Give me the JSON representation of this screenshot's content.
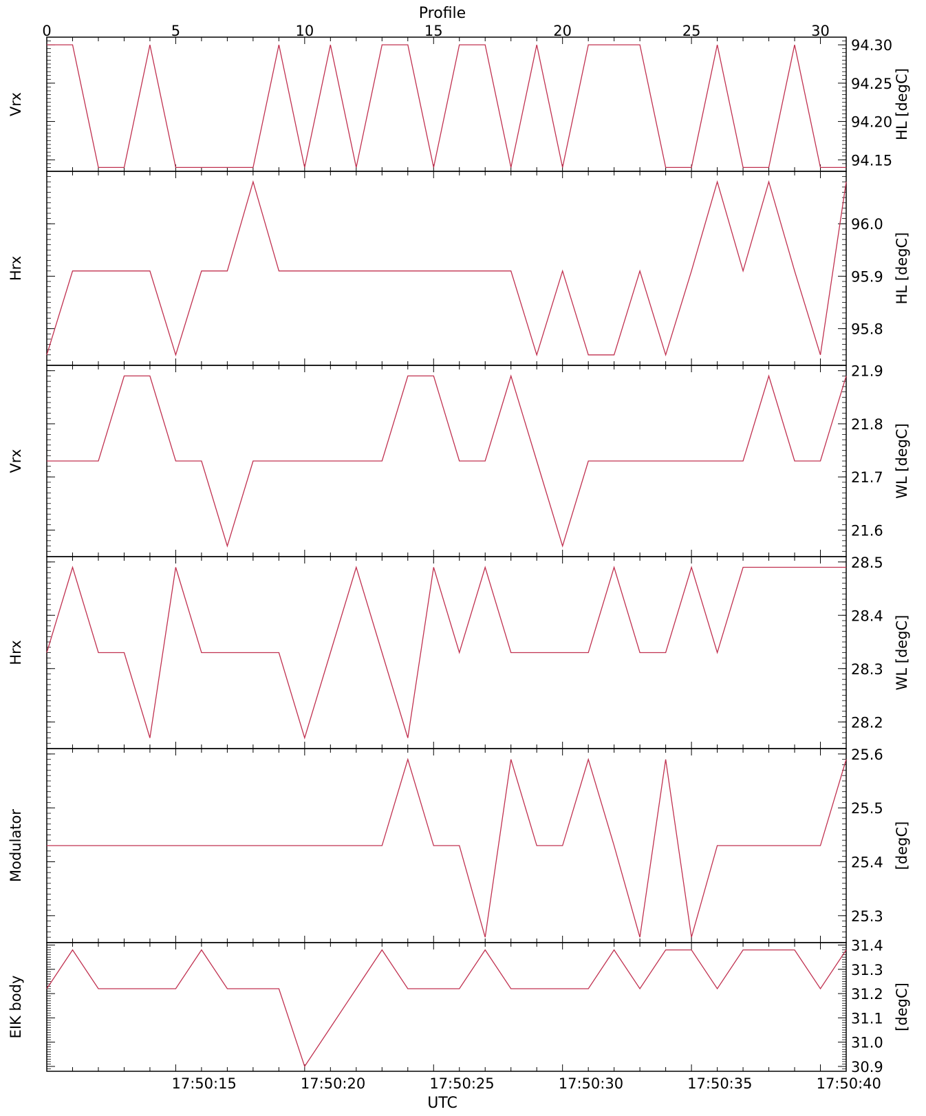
{
  "figure": {
    "top_axis_label": "Profile",
    "bottom_axis_label": "UTC",
    "top_ticks": [
      "0",
      "5",
      "10",
      "15",
      "20",
      "25",
      "30"
    ],
    "bottom_ticks": [
      "17:50:15",
      "17:50:20",
      "17:50:25",
      "17:50:30",
      "17:50:35",
      "17:50:40"
    ],
    "line_color": "#c0304f"
  },
  "chart_data": [
    {
      "type": "line",
      "left_label": "Vrx",
      "ylabel": "HL [degC]",
      "x": [
        0,
        1,
        2,
        3,
        4,
        5,
        6,
        7,
        8,
        9,
        10,
        11,
        12,
        13,
        14,
        15,
        16,
        17,
        18,
        19,
        20,
        21,
        22,
        23,
        24,
        25,
        26,
        27,
        28,
        29,
        30,
        31
      ],
      "values": [
        94.3,
        94.3,
        94.14,
        94.14,
        94.3,
        94.14,
        94.14,
        94.14,
        94.14,
        94.3,
        94.14,
        94.3,
        94.14,
        94.3,
        94.3,
        94.14,
        94.3,
        94.3,
        94.14,
        94.3,
        94.14,
        94.3,
        94.3,
        94.3,
        94.14,
        94.14,
        94.3,
        94.14,
        94.14,
        94.3,
        94.14,
        94.14
      ],
      "ylim": [
        94.135,
        94.31
      ],
      "yticks": [
        "94.15",
        "94.20",
        "94.25",
        "94.30"
      ],
      "ytick_values": [
        94.15,
        94.2,
        94.25,
        94.3
      ]
    },
    {
      "type": "line",
      "left_label": "Hrx",
      "ylabel": "HL [degC]",
      "x": [
        0,
        1,
        2,
        3,
        4,
        5,
        6,
        7,
        8,
        9,
        10,
        11,
        12,
        13,
        14,
        15,
        16,
        17,
        18,
        19,
        20,
        21,
        22,
        23,
        24,
        25,
        26,
        27,
        28,
        29,
        30,
        31
      ],
      "values": [
        95.75,
        95.91,
        95.91,
        95.91,
        95.91,
        95.75,
        95.91,
        95.91,
        96.08,
        95.91,
        95.91,
        95.91,
        95.91,
        95.91,
        95.91,
        95.91,
        95.91,
        95.91,
        95.91,
        95.75,
        95.91,
        95.75,
        95.75,
        95.91,
        95.75,
        95.91,
        96.08,
        95.91,
        96.08,
        95.91,
        95.75,
        96.08
      ],
      "ylim": [
        95.73,
        96.1
      ],
      "yticks": [
        "95.8",
        "95.9",
        "96.0"
      ],
      "ytick_values": [
        95.8,
        95.9,
        96.0
      ]
    },
    {
      "type": "line",
      "left_label": "Vrx",
      "ylabel": "WL [degC]",
      "x": [
        0,
        1,
        2,
        3,
        4,
        5,
        6,
        7,
        8,
        9,
        10,
        11,
        12,
        13,
        14,
        15,
        16,
        17,
        18,
        19,
        20,
        21,
        22,
        23,
        24,
        25,
        26,
        27,
        28,
        29,
        30,
        31
      ],
      "values": [
        21.73,
        21.73,
        21.73,
        21.89,
        21.89,
        21.73,
        21.73,
        21.57,
        21.73,
        21.73,
        21.73,
        21.73,
        21.73,
        21.73,
        21.89,
        21.89,
        21.73,
        21.73,
        21.89,
        21.73,
        21.57,
        21.73,
        21.73,
        21.73,
        21.73,
        21.73,
        21.73,
        21.73,
        21.89,
        21.73,
        21.73,
        21.89
      ],
      "ylim": [
        21.55,
        21.91
      ],
      "yticks": [
        "21.6",
        "21.7",
        "21.8",
        "21.9"
      ],
      "ytick_values": [
        21.6,
        21.7,
        21.8,
        21.9
      ]
    },
    {
      "type": "line",
      "left_label": "Hrx",
      "ylabel": "WL [degC]",
      "x": [
        0,
        1,
        2,
        3,
        4,
        5,
        6,
        7,
        8,
        9,
        10,
        11,
        12,
        13,
        14,
        15,
        16,
        17,
        18,
        19,
        20,
        21,
        22,
        23,
        24,
        25,
        26,
        27,
        28,
        29,
        30,
        31
      ],
      "values": [
        28.33,
        28.49,
        28.33,
        28.33,
        28.17,
        28.49,
        28.33,
        28.33,
        28.33,
        28.33,
        28.17,
        28.33,
        28.49,
        28.33,
        28.17,
        28.49,
        28.33,
        28.49,
        28.33,
        28.33,
        28.33,
        28.33,
        28.49,
        28.33,
        28.33,
        28.49,
        28.33,
        28.49,
        28.49,
        28.49,
        28.49,
        28.49
      ],
      "ylim": [
        28.15,
        28.51
      ],
      "yticks": [
        "28.2",
        "28.3",
        "28.4",
        "28.5"
      ],
      "ytick_values": [
        28.2,
        28.3,
        28.4,
        28.5
      ]
    },
    {
      "type": "line",
      "left_label": "Modulator",
      "ylabel": "[degC]",
      "x": [
        0,
        1,
        2,
        3,
        4,
        5,
        6,
        7,
        8,
        9,
        10,
        11,
        12,
        13,
        14,
        15,
        16,
        17,
        18,
        19,
        20,
        21,
        22,
        23,
        24,
        25,
        26,
        27,
        28,
        29,
        30,
        31
      ],
      "values": [
        25.43,
        25.43,
        25.43,
        25.43,
        25.43,
        25.43,
        25.43,
        25.43,
        25.43,
        25.43,
        25.43,
        25.43,
        25.43,
        25.43,
        25.59,
        25.43,
        25.43,
        25.26,
        25.59,
        25.43,
        25.43,
        25.59,
        25.43,
        25.26,
        25.59,
        25.26,
        25.43,
        25.43,
        25.43,
        25.43,
        25.43,
        25.59
      ],
      "ylim": [
        25.25,
        25.61
      ],
      "yticks": [
        "25.3",
        "25.4",
        "25.5",
        "25.6"
      ],
      "ytick_values": [
        25.3,
        25.4,
        25.5,
        25.6
      ]
    },
    {
      "type": "line",
      "left_label": "EIK body",
      "ylabel": "[degC]",
      "x": [
        0,
        1,
        2,
        3,
        4,
        5,
        6,
        7,
        8,
        9,
        10,
        11,
        12,
        13,
        14,
        15,
        16,
        17,
        18,
        19,
        20,
        21,
        22,
        23,
        24,
        25,
        26,
        27,
        28,
        29,
        30,
        31
      ],
      "values": [
        31.22,
        31.38,
        31.22,
        31.22,
        31.22,
        31.22,
        31.38,
        31.22,
        31.22,
        31.22,
        30.9,
        31.06,
        31.22,
        31.38,
        31.22,
        31.22,
        31.22,
        31.38,
        31.22,
        31.22,
        31.22,
        31.22,
        31.38,
        31.22,
        31.38,
        31.38,
        31.22,
        31.38,
        31.38,
        31.38,
        31.22,
        31.38
      ],
      "ylim": [
        30.88,
        31.41
      ],
      "yticks": [
        "30.9",
        "31.0",
        "31.1",
        "31.2",
        "31.3",
        "31.4"
      ],
      "ytick_values": [
        30.9,
        31.0,
        31.1,
        31.2,
        31.3,
        31.4
      ]
    }
  ]
}
